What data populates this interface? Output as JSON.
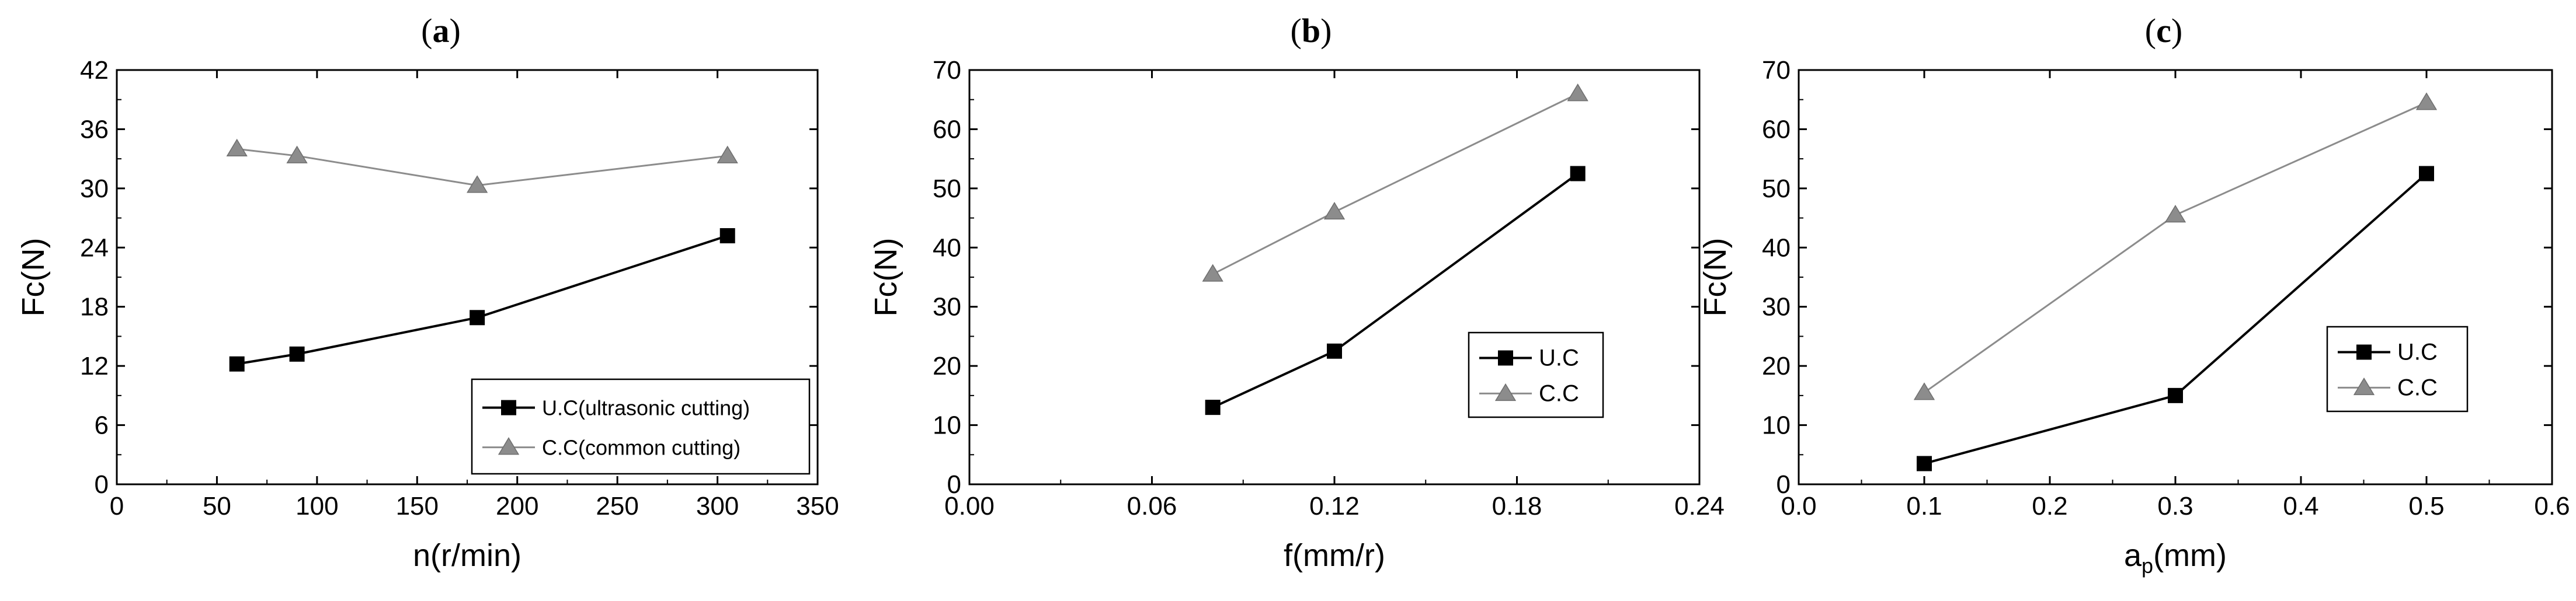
{
  "chart_data": [
    {
      "type": "line",
      "panel_label": "a",
      "xlabel": "n(r/min)",
      "ylabel": "Fc(N)",
      "xlim": [
        0,
        350
      ],
      "ylim": [
        0,
        42
      ],
      "xticks": [
        "0",
        "50",
        "100",
        "150",
        "200",
        "250",
        "300",
        "350"
      ],
      "yticks": [
        "0",
        "6",
        "12",
        "18",
        "24",
        "30",
        "36",
        "42"
      ],
      "legend_position": "bottom-right",
      "series": [
        {
          "name": "U.C(ultrasonic cutting)",
          "marker": "square",
          "color": "#000000",
          "x": [
            60,
            90,
            180,
            305
          ],
          "y": [
            12.2,
            13.2,
            16.9,
            25.2
          ]
        },
        {
          "name": "C.C(common cutting)",
          "marker": "triangle",
          "color": "#8c8c8c",
          "x": [
            60,
            90,
            180,
            305
          ],
          "y": [
            34.0,
            33.3,
            30.3,
            33.3
          ]
        }
      ]
    },
    {
      "type": "line",
      "panel_label": "b",
      "xlabel": "f(mm/r)",
      "ylabel": "Fc(N)",
      "xlim": [
        0,
        0.24
      ],
      "ylim": [
        0,
        70
      ],
      "xticks": [
        "0.00",
        "0.06",
        "0.12",
        "0.18",
        "0.24"
      ],
      "yticks": [
        "0",
        "10",
        "20",
        "30",
        "40",
        "50",
        "60",
        "70"
      ],
      "legend_position": "center-right",
      "series": [
        {
          "name": "U.C",
          "marker": "square",
          "color": "#000000",
          "x": [
            0.08,
            0.12,
            0.2
          ],
          "y": [
            13,
            22.5,
            52.5
          ]
        },
        {
          "name": "C.C",
          "marker": "triangle",
          "color": "#8c8c8c",
          "x": [
            0.08,
            0.12,
            0.2
          ],
          "y": [
            35.5,
            46,
            66
          ]
        }
      ]
    },
    {
      "type": "line",
      "panel_label": "c",
      "xlabel_main": "a",
      "xlabel_sub": "p",
      "xlabel_unit": "(mm)",
      "ylabel": "Fc(N)",
      "xlim": [
        0,
        0.6
      ],
      "ylim": [
        0,
        70
      ],
      "xticks": [
        "0.0",
        "0.1",
        "0.2",
        "0.3",
        "0.4",
        "0.5",
        "0.6"
      ],
      "yticks": [
        "0",
        "10",
        "20",
        "30",
        "40",
        "50",
        "60",
        "70"
      ],
      "legend_position": "bottom-right",
      "series": [
        {
          "name": "U.C",
          "marker": "square",
          "color": "#000000",
          "x": [
            0.1,
            0.3,
            0.5
          ],
          "y": [
            3.5,
            15,
            52.5
          ]
        },
        {
          "name": "C.C",
          "marker": "triangle",
          "color": "#8c8c8c",
          "x": [
            0.1,
            0.3,
            0.5
          ],
          "y": [
            15.5,
            45.5,
            64.5
          ]
        }
      ]
    }
  ]
}
